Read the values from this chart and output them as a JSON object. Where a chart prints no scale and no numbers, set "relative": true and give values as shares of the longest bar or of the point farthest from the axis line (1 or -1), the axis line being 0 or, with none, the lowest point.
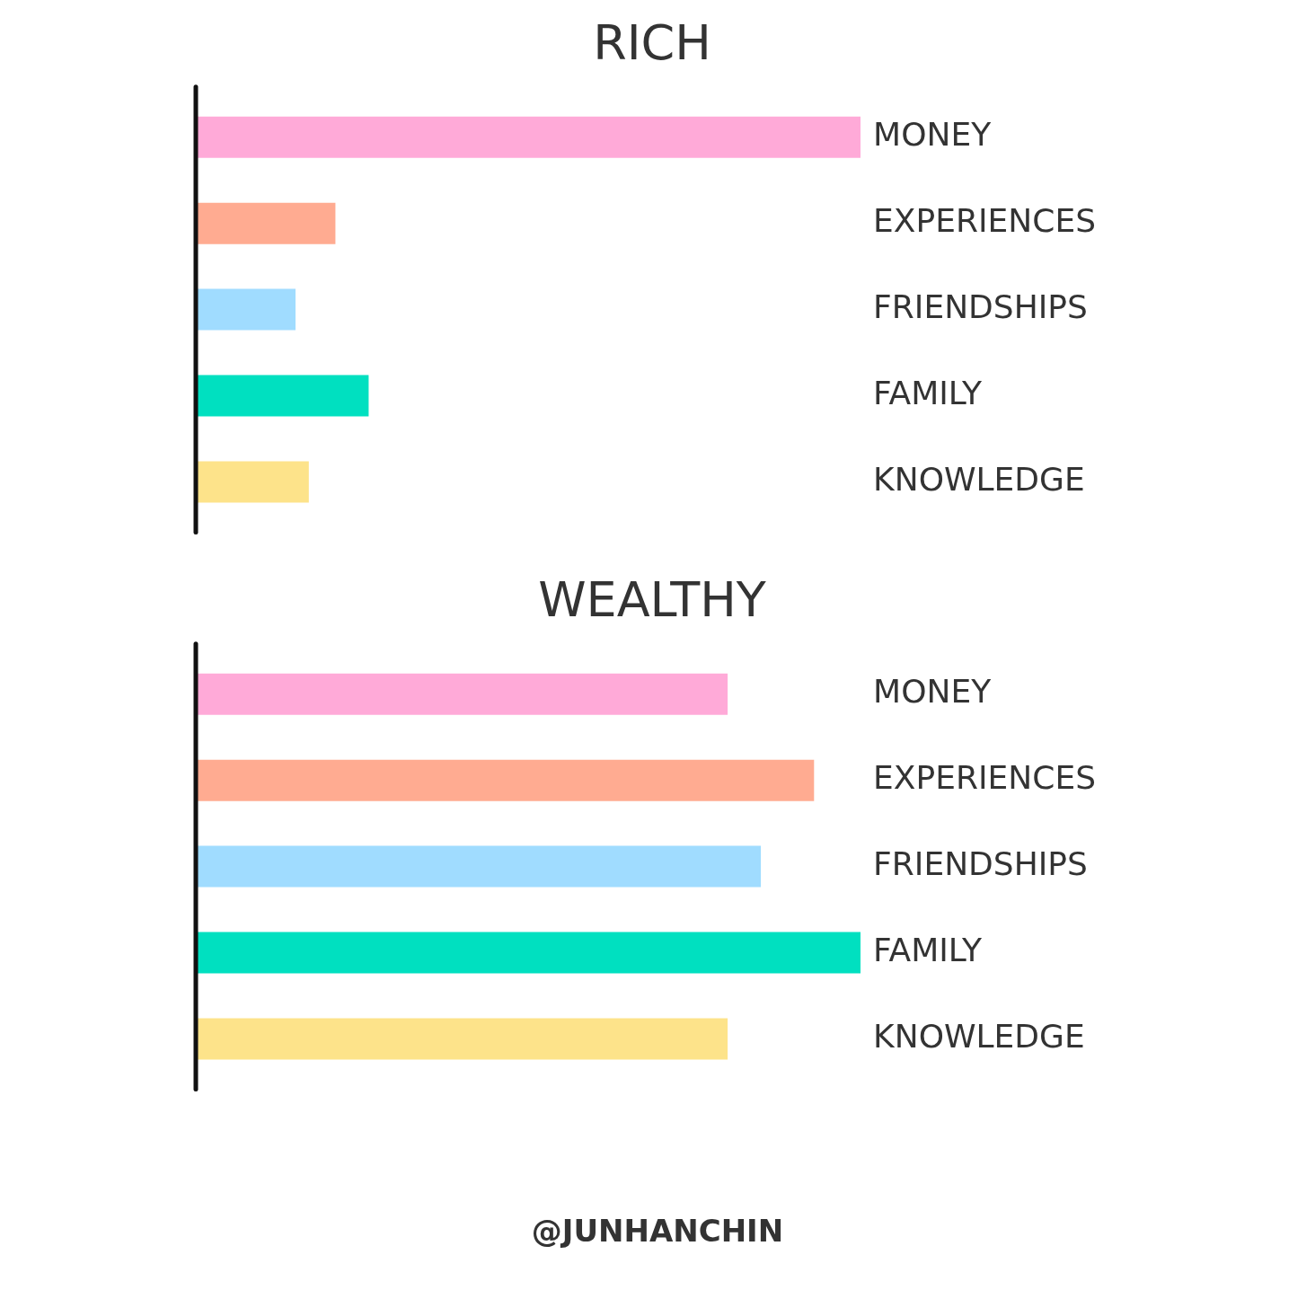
{
  "chart_data": [
    {
      "type": "bar",
      "orientation": "horizontal",
      "relative": true,
      "title": "RICH",
      "categories": [
        "MONEY",
        "EXPERIENCES",
        "FRIENDSHIPS",
        "FAMILY",
        "KNOWLEDGE"
      ],
      "values": [
        1,
        0.21,
        0.15,
        0.26,
        0.17
      ],
      "colors": [
        "#ffaad8",
        "#ffab91",
        "#a0dcff",
        "#00e0c0",
        "#fde38a"
      ],
      "legend": false,
      "tick_labels": "y"
    },
    {
      "type": "bar",
      "orientation": "horizontal",
      "relative": true,
      "title": "WEALTHY",
      "categories": [
        "MONEY",
        "EXPERIENCES",
        "FRIENDSHIPS",
        "FAMILY",
        "KNOWLEDGE"
      ],
      "values": [
        0.8,
        0.93,
        0.85,
        1,
        0.8
      ],
      "colors": [
        "#ffaad8",
        "#ffab91",
        "#a0dcff",
        "#00e0c0",
        "#fde38a"
      ],
      "legend": false,
      "tick_labels": "y",
      "annotations": [
        "@JUNHANCHIN"
      ]
    }
  ]
}
